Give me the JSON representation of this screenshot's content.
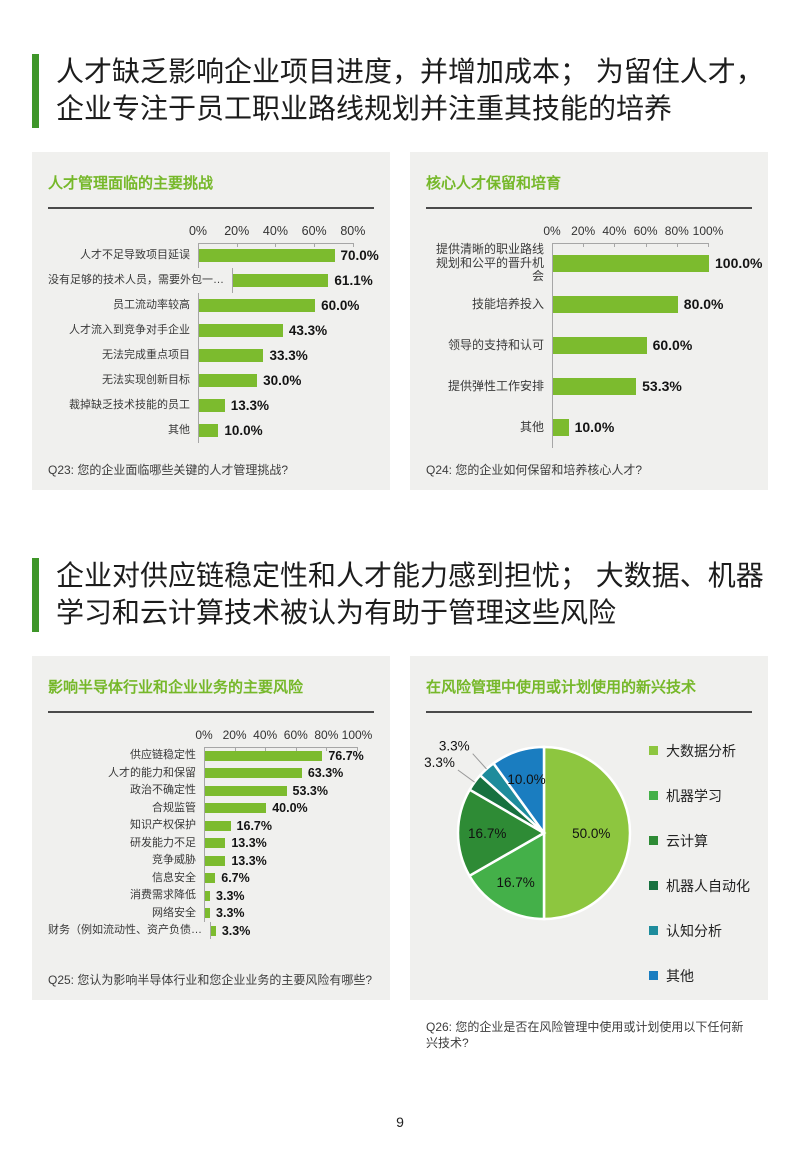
{
  "page_number": "9",
  "headlines": [
    "人才缺乏影响企业项目进度，并增加成本； 为留住人才，企业专注于员工职业路线规划并注重其技能的培养",
    "企业对供应链稳定性和人才能力感到担忧； 大数据、机器学习和云计算技术被认为有助于管理这些风险"
  ],
  "colors": {
    "accent_green": "#3E9629",
    "title_green": "#76B82A",
    "bar_green": "#7CBB2E",
    "card_background": "#F0F0EE",
    "axis_gray": "#A6A6A6"
  },
  "chart_data": [
    {
      "type": "bar",
      "title": "人才管理面临的主要挑战",
      "caption": "Q23: 您的企业面临哪些关键的人才管理挑战?",
      "xlim": [
        0,
        80
      ],
      "ticks": [
        "0%",
        "20%",
        "40%",
        "60%",
        "80%"
      ],
      "categories": [
        "人才不足导致项目延误",
        "没有足够的技术人员，需要外包一…",
        "员工流动率较高",
        "人才流入到竞争对手企业",
        "无法完成重点项目",
        "无法实现创新目标",
        "裁掉缺乏技术技能的员工",
        "其他"
      ],
      "values": [
        70.0,
        61.1,
        60.0,
        43.3,
        33.3,
        30.0,
        13.3,
        10.0
      ]
    },
    {
      "type": "bar",
      "title": "核心人才保留和培育",
      "caption": "Q24: 您的企业如何保留和培养核心人才?",
      "xlim": [
        0,
        100
      ],
      "ticks": [
        "0%",
        "20%",
        "40%",
        "60%",
        "80%",
        "100%"
      ],
      "categories": [
        "提供清晰的职业路线规划和公平的晋升机会",
        "技能培养投入",
        "领导的支持和认可",
        "提供弹性工作安排",
        "其他"
      ],
      "values": [
        100.0,
        80.0,
        60.0,
        53.3,
        10.0
      ]
    },
    {
      "type": "bar",
      "title": "影响半导体行业和企业业务的主要风险",
      "caption": "Q25: 您认为影响半导体行业和您企业业务的主要风险有哪些?",
      "xlim": [
        0,
        100
      ],
      "ticks": [
        "0%",
        "20%",
        "40%",
        "60%",
        "80%",
        "100%"
      ],
      "categories": [
        "供应链稳定性",
        "人才的能力和保留",
        "政治不确定性",
        "合规监管",
        "知识产权保护",
        "研发能力不足",
        "竞争威胁",
        "信息安全",
        "消费需求降低",
        "网络安全",
        "财务（例如流动性、资产负债…"
      ],
      "values": [
        76.7,
        63.3,
        53.3,
        40.0,
        16.7,
        13.3,
        13.3,
        6.7,
        3.3,
        3.3,
        3.3
      ]
    },
    {
      "type": "pie",
      "title": "在风险管理中使用或计划使用的新兴技术",
      "caption": "Q26: 您的企业是否在风险管理中使用或计划使用以下任何新兴技术?",
      "legend_position": "right",
      "slices": [
        {
          "label": "大数据分析",
          "value": 50.0,
          "color": "#8DC63F"
        },
        {
          "label": "机器学习",
          "value": 16.7,
          "color": "#44B049"
        },
        {
          "label": "云计算",
          "value": 16.7,
          "color": "#2E8B35"
        },
        {
          "label": "机器人自动化",
          "value": 3.3,
          "color": "#17713F"
        },
        {
          "label": "认知分析",
          "value": 3.3,
          "color": "#1E8C9C"
        },
        {
          "label": "其他",
          "value": 10.0,
          "color": "#1A7DC0"
        }
      ]
    }
  ]
}
